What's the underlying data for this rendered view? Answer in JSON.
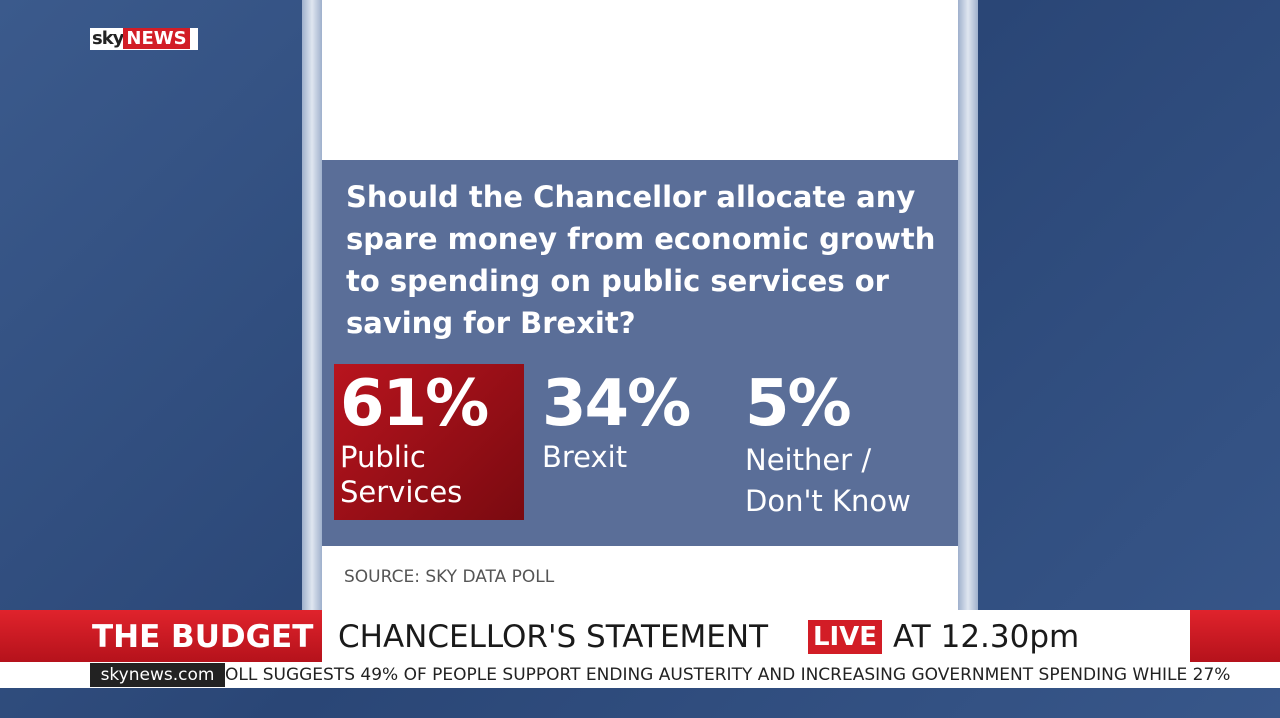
{
  "logo": {
    "sky": "sky",
    "news": "NEWS"
  },
  "question": "Should the Chancellor allocate any spare money from economic growth to spending on public services or saving for Brexit?",
  "results": [
    {
      "value": "61%",
      "label": "Public Services"
    },
    {
      "value": "34%",
      "label": "Brexit"
    },
    {
      "value": "5%",
      "label": "Neither / Don't Know"
    }
  ],
  "source": "SOURCE: SKY DATA POLL",
  "banner": {
    "title": "THE BUDGET",
    "headline": "CHANCELLOR'S STATEMENT",
    "live": "LIVE",
    "time": "AT 12.30pm"
  },
  "ticker": {
    "site": "skynews.com",
    "text": "OLL SUGGESTS 49% OF PEOPLE SUPPORT ENDING AUSTERITY AND INCREASING GOVERNMENT SPENDING WHILE 27%"
  }
}
